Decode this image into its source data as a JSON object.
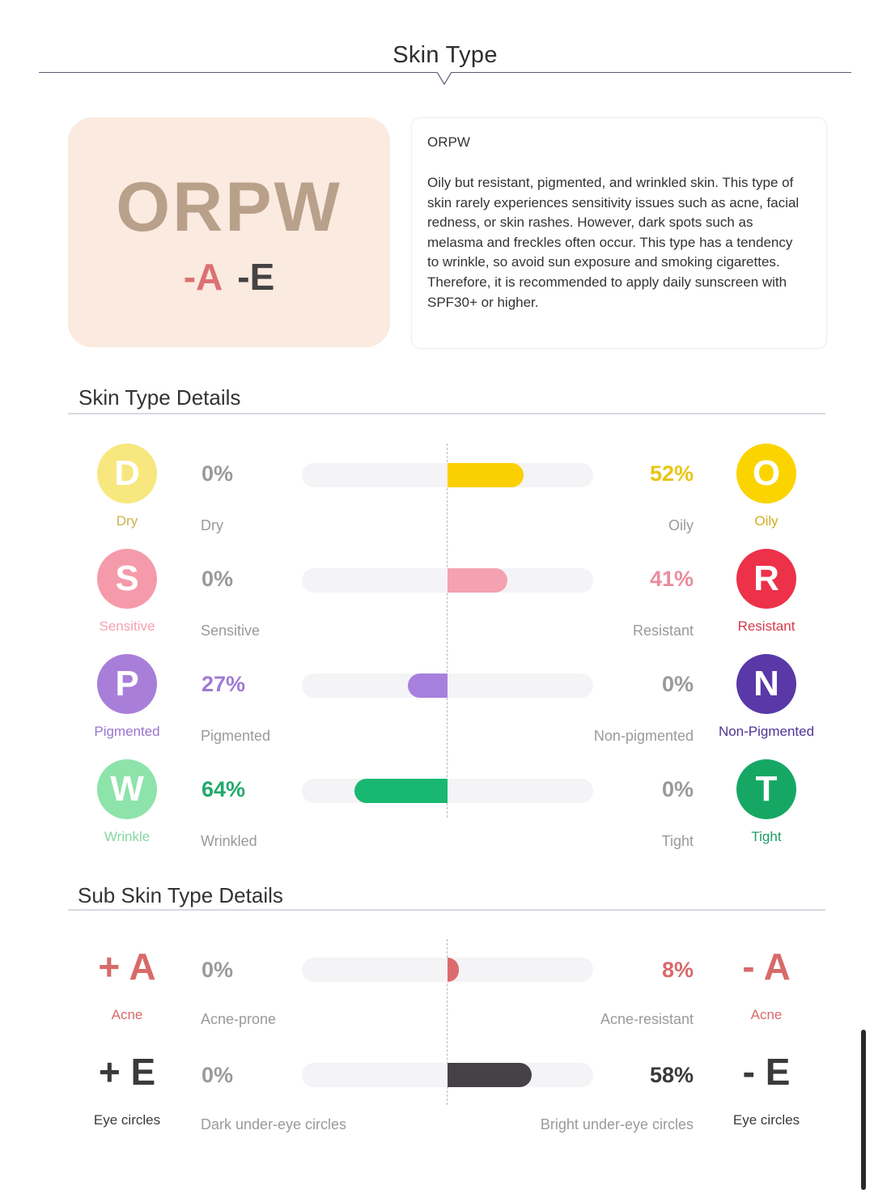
{
  "page": {
    "title": "Skin Type"
  },
  "result": {
    "type_code": "ORPW",
    "sub_codes": [
      "-A",
      "-E"
    ],
    "description_title": "ORPW",
    "description": "Oily but resistant, pigmented, and wrinkled skin. This type of skin rarely experiences sensitivity issues such as acne, facial redness, or skin rashes. However, dark spots such as melasma and freckles often occur. This type has a tendency to wrinkle, so avoid sun exposure and smoking cigarettes. Therefore, it is recommended to apply daily sunscreen with SPF30+ or higher."
  },
  "details": {
    "title": "Skin Type Details",
    "rows": [
      {
        "left": {
          "letter": "D",
          "label": "Dry",
          "color": "#f8e77e",
          "label_color": "#c9b44a",
          "percent": "0%",
          "bar_label": "Dry"
        },
        "right": {
          "letter": "O",
          "label": "Oily",
          "color": "#fbd400",
          "label_color": "#d1ae1e",
          "percent": "52%",
          "bar_label": "Oily"
        },
        "fill_side": "right",
        "fill_fraction": 0.52,
        "fill_color": "#fbd000",
        "pct_color": "#e9c515"
      },
      {
        "left": {
          "letter": "S",
          "label": "Sensitive",
          "color": "#f59aaa",
          "label_color": "#f4a2b0",
          "percent": "0%",
          "bar_label": "Sensitive"
        },
        "right": {
          "letter": "R",
          "label": "Resistant",
          "color": "#ec3149",
          "label_color": "#d83a4c",
          "percent": "41%",
          "bar_label": "Resistant"
        },
        "fill_side": "right",
        "fill_fraction": 0.41,
        "fill_color": "#f4a2b2",
        "pct_color": "#e88d9d"
      },
      {
        "left": {
          "letter": "P",
          "label": "Pigmented",
          "color": "#a97ed9",
          "label_color": "#9b72cf",
          "percent": "27%",
          "bar_label": "Pigmented"
        },
        "right": {
          "letter": "N",
          "label": "Non-Pigmented",
          "color": "#5a38a8",
          "label_color": "#4f3595",
          "percent": "0%",
          "bar_label": "Non-pigmented"
        },
        "fill_side": "left",
        "fill_fraction": 0.27,
        "fill_color": "#a77fdc",
        "pct_color": "#a07ad3"
      },
      {
        "left": {
          "letter": "W",
          "label": "Wrinkle",
          "color": "#8de3aa",
          "label_color": "#87d7a0",
          "percent": "64%",
          "bar_label": "Wrinkled"
        },
        "right": {
          "letter": "T",
          "label": "Tight",
          "color": "#16a765",
          "label_color": "#1e9d63",
          "percent": "0%",
          "bar_label": "Tight"
        },
        "fill_side": "left",
        "fill_fraction": 0.64,
        "fill_color": "#18b872",
        "pct_color": "#22a86b"
      }
    ]
  },
  "sub_details": {
    "title": "Sub Skin Type Details",
    "rows": [
      {
        "left": {
          "symbol": "+ A",
          "label": "Acne",
          "color": "#d86a6a",
          "percent": "0%",
          "bar_label": "Acne-prone"
        },
        "right": {
          "symbol": "- A",
          "label": "Acne",
          "color": "#d86a6a",
          "percent": "8%",
          "bar_label": "Acne-resistant"
        },
        "fill_side": "right",
        "fill_fraction": 0.08,
        "fill_color": "#dc6b6d",
        "pct_color": "#d86a6a"
      },
      {
        "left": {
          "symbol": "+ E",
          "label": "Eye circles",
          "color": "#3a3a3a",
          "percent": "0%",
          "bar_label": "Dark under-eye circles"
        },
        "right": {
          "symbol": "- E",
          "label": "Eye circles",
          "color": "#3a3a3a",
          "percent": "58%",
          "bar_label": "Bright under-eye circles"
        },
        "fill_side": "right",
        "fill_fraction": 0.58,
        "fill_color": "#444244",
        "pct_color": "#3a3a3a"
      }
    ]
  },
  "misc": {
    "zero_pct_color": "#9a9a9a"
  }
}
